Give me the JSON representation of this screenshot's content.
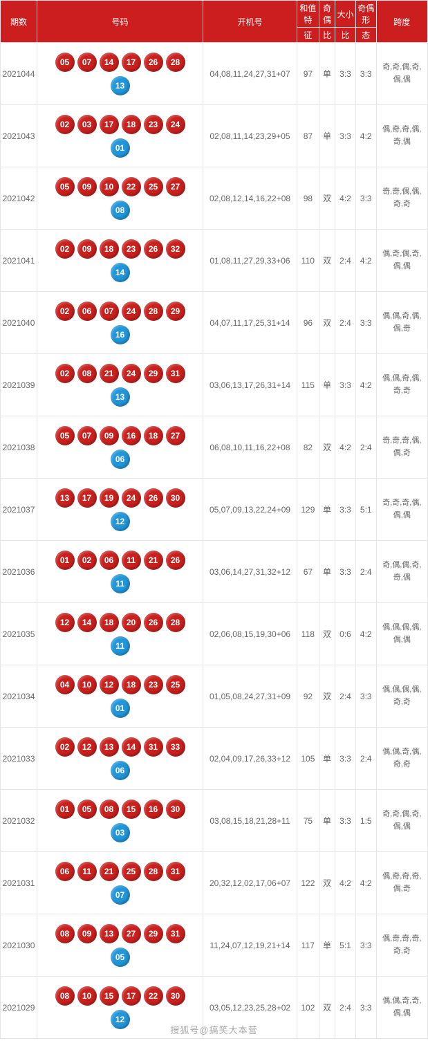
{
  "header": {
    "period": "期数",
    "numbers": "号码",
    "kaiji": "开机号",
    "he_top": "和值特",
    "he_bot": "征",
    "qi_top": "奇偶",
    "qi_bot": "比",
    "da_top": "大小",
    "da_bot": "比",
    "xing_top": "奇偶形",
    "xing_bot": "态",
    "kuadu": "跨度"
  },
  "colors": {
    "header_bg": "#cc1e1e",
    "red_ball": "#c9211e",
    "blue_ball": "#2196d9",
    "border": "#e5e5e5",
    "text": "#666666"
  },
  "watermark": "搜狐号@搞笑大本营",
  "rows": [
    {
      "period": "2021044",
      "red": [
        "05",
        "07",
        "14",
        "17",
        "26",
        "28"
      ],
      "blue": "13",
      "kaiji": "04,08,11,24,27,31+07",
      "he": "97",
      "qi": "单",
      "da": "3:3",
      "xing": "3:3",
      "kuadu": "奇,奇,偶,奇,偶,偶"
    },
    {
      "period": "2021043",
      "red": [
        "02",
        "03",
        "17",
        "18",
        "23",
        "24"
      ],
      "blue": "01",
      "kaiji": "02,08,11,14,23,29+05",
      "he": "87",
      "qi": "单",
      "da": "3:3",
      "xing": "4:2",
      "kuadu": "偶,奇,奇,偶,奇,偶"
    },
    {
      "period": "2021042",
      "red": [
        "05",
        "09",
        "10",
        "22",
        "25",
        "27"
      ],
      "blue": "08",
      "kaiji": "02,08,12,14,16,22+08",
      "he": "98",
      "qi": "双",
      "da": "4:2",
      "xing": "3:3",
      "kuadu": "奇,奇,偶,偶,奇,奇"
    },
    {
      "period": "2021041",
      "red": [
        "02",
        "09",
        "18",
        "23",
        "26",
        "32"
      ],
      "blue": "14",
      "kaiji": "01,08,11,27,29,33+06",
      "he": "110",
      "qi": "双",
      "da": "2:4",
      "xing": "4:2",
      "kuadu": "偶,奇,偶,奇,偶,偶"
    },
    {
      "period": "2021040",
      "red": [
        "02",
        "06",
        "07",
        "24",
        "28",
        "29"
      ],
      "blue": "16",
      "kaiji": "04,07,11,17,25,31+14",
      "he": "96",
      "qi": "双",
      "da": "2:4",
      "xing": "3:3",
      "kuadu": "偶,偶,奇,偶,偶,奇"
    },
    {
      "period": "2021039",
      "red": [
        "02",
        "08",
        "21",
        "24",
        "29",
        "31"
      ],
      "blue": "13",
      "kaiji": "03,06,13,17,26,31+14",
      "he": "115",
      "qi": "单",
      "da": "3:3",
      "xing": "4:2",
      "kuadu": "偶,偶,奇,偶,奇,奇"
    },
    {
      "period": "2021038",
      "red": [
        "05",
        "07",
        "09",
        "16",
        "18",
        "27"
      ],
      "blue": "06",
      "kaiji": "06,08,10,11,16,22+08",
      "he": "82",
      "qi": "双",
      "da": "4:2",
      "xing": "2:4",
      "kuadu": "奇,奇,奇,偶,偶,奇"
    },
    {
      "period": "2021037",
      "red": [
        "13",
        "17",
        "19",
        "24",
        "26",
        "30"
      ],
      "blue": "12",
      "kaiji": "05,07,09,13,22,24+09",
      "he": "129",
      "qi": "单",
      "da": "3:3",
      "xing": "5:1",
      "kuadu": "奇,奇,奇,偶,偶,偶"
    },
    {
      "period": "2021036",
      "red": [
        "01",
        "02",
        "06",
        "11",
        "21",
        "26"
      ],
      "blue": "11",
      "kaiji": "03,06,14,27,31,32+12",
      "he": "67",
      "qi": "单",
      "da": "3:3",
      "xing": "2:4",
      "kuadu": "奇,偶,偶,奇,奇,偶"
    },
    {
      "period": "2021035",
      "red": [
        "12",
        "14",
        "18",
        "20",
        "26",
        "28"
      ],
      "blue": "11",
      "kaiji": "02,06,08,15,19,30+06",
      "he": "118",
      "qi": "双",
      "da": "0:6",
      "xing": "4:2",
      "kuadu": "偶,偶,偶,偶,偶,偶"
    },
    {
      "period": "2021034",
      "red": [
        "04",
        "10",
        "12",
        "18",
        "23",
        "25"
      ],
      "blue": "01",
      "kaiji": "01,05,08,24,27,31+09",
      "he": "92",
      "qi": "双",
      "da": "2:4",
      "xing": "3:3",
      "kuadu": "偶,偶,偶,偶,奇,奇"
    },
    {
      "period": "2021033",
      "red": [
        "02",
        "12",
        "13",
        "14",
        "31",
        "33"
      ],
      "blue": "06",
      "kaiji": "02,04,09,17,26,33+12",
      "he": "105",
      "qi": "单",
      "da": "3:3",
      "xing": "2:4",
      "kuadu": "偶,偶,奇,偶,奇,奇"
    },
    {
      "period": "2021032",
      "red": [
        "01",
        "05",
        "08",
        "15",
        "16",
        "30"
      ],
      "blue": "03",
      "kaiji": "03,08,15,18,21,28+11",
      "he": "75",
      "qi": "单",
      "da": "3:3",
      "xing": "1:5",
      "kuadu": "奇,奇,偶,奇,偶,偶"
    },
    {
      "period": "2021031",
      "red": [
        "06",
        "11",
        "21",
        "25",
        "28",
        "31"
      ],
      "blue": "07",
      "kaiji": "20,32,12,02,17,06+07",
      "he": "122",
      "qi": "双",
      "da": "4:2",
      "xing": "4:2",
      "kuadu": "偶,奇,奇,奇,偶,奇"
    },
    {
      "period": "2021030",
      "red": [
        "08",
        "09",
        "13",
        "27",
        "29",
        "31"
      ],
      "blue": "05",
      "kaiji": "11,24,07,12,19,21+14",
      "he": "117",
      "qi": "单",
      "da": "5:1",
      "xing": "3:3",
      "kuadu": "偶,奇,奇,奇,奇,奇"
    },
    {
      "period": "2021029",
      "red": [
        "08",
        "10",
        "15",
        "17",
        "22",
        "30"
      ],
      "blue": "12",
      "kaiji": "03,05,12,23,25,28+02",
      "he": "102",
      "qi": "双",
      "da": "2:4",
      "xing": "3:3",
      "kuadu": "偶,偶,奇,奇,偶,偶"
    }
  ]
}
